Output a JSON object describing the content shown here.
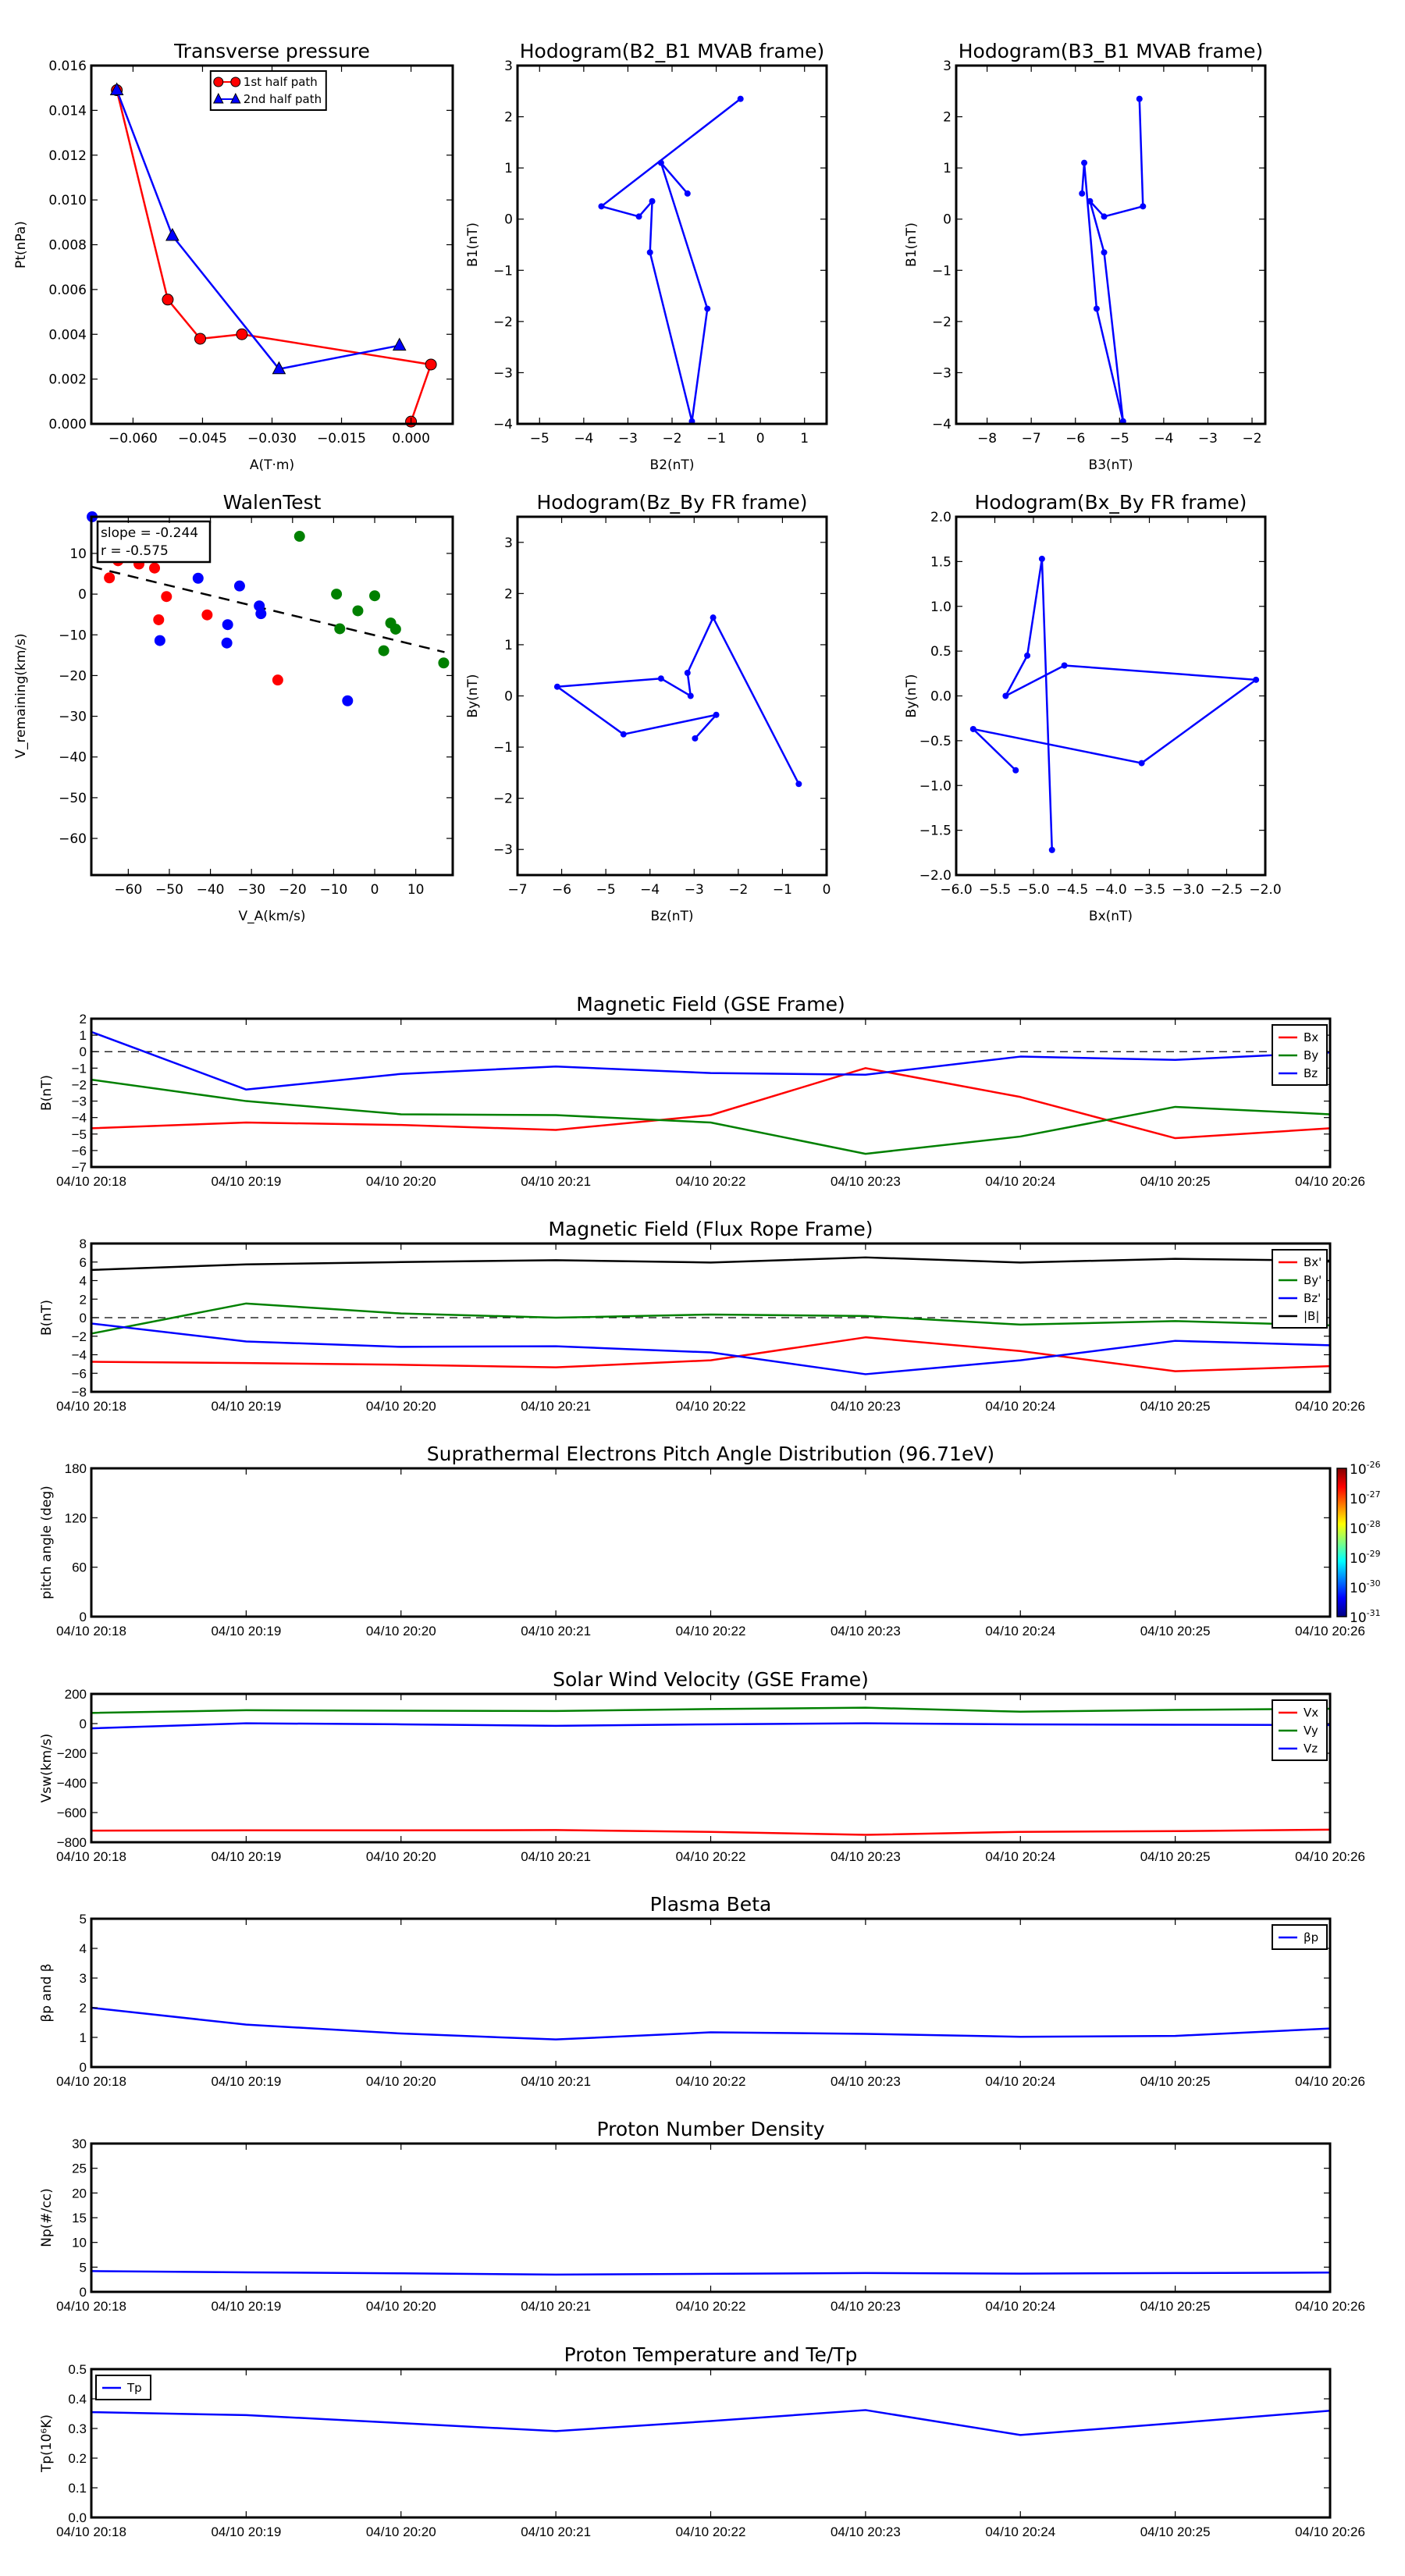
{
  "chart_data": [
    {
      "id": "transverse-pressure",
      "type": "line",
      "title": "Transverse pressure",
      "xlabel": "A(T·m)",
      "ylabel": "Pt(nPa)",
      "xlim": [
        -0.069,
        0.009
      ],
      "ylim": [
        0.0,
        0.016
      ],
      "xticks": [
        -0.06,
        -0.045,
        -0.03,
        -0.015,
        0.0
      ],
      "xtick_labels": [
        "−0.060",
        "−0.045",
        "−0.030",
        "−0.015",
        "0.000"
      ],
      "yticks": [
        0.0,
        0.002,
        0.004,
        0.006,
        0.008,
        0.01,
        0.012,
        0.014,
        0.016
      ],
      "ytick_labels": [
        "0.000",
        "0.002",
        "0.004",
        "0.006",
        "0.008",
        "0.010",
        "0.012",
        "0.014",
        "0.016"
      ],
      "legend_position": "top-center",
      "series": [
        {
          "name": "1st half path",
          "color": "#ff0000",
          "marker": "circle",
          "x": [
            0.0,
            0.0043,
            -0.0365,
            -0.0455,
            -0.0525,
            -0.0635
          ],
          "y": [
            0.0001,
            0.00265,
            0.004,
            0.0038,
            0.00555,
            0.0149
          ]
        },
        {
          "name": "2nd half path",
          "color": "#0000ff",
          "marker": "triangle",
          "x": [
            -0.0635,
            -0.0515,
            -0.0285,
            -0.0025
          ],
          "y": [
            0.0149,
            0.0084,
            0.00245,
            0.0035
          ]
        }
      ]
    },
    {
      "id": "hodogram-b2-b1",
      "type": "line",
      "title": "Hodogram(B2_B1 MVAB frame)",
      "xlabel": "B2(nT)",
      "ylabel": "B1(nT)",
      "xlim": [
        -5.5,
        1.5
      ],
      "ylim": [
        -4,
        3
      ],
      "xticks": [
        -5,
        -4,
        -3,
        -2,
        -1,
        0,
        1
      ],
      "xtick_labels": [
        "−5",
        "−4",
        "−3",
        "−2",
        "−1",
        "0",
        "1"
      ],
      "yticks": [
        -4,
        -3,
        -2,
        -1,
        0,
        1,
        2,
        3
      ],
      "ytick_labels": [
        "−4",
        "−3",
        "−2",
        "−1",
        "0",
        "1",
        "2",
        "3"
      ],
      "series": [
        {
          "name": "B2_B1",
          "color": "#0000ff",
          "marker": "dot",
          "x": [
            -0.45,
            -3.6,
            -2.75,
            -2.45,
            -2.5,
            -1.55,
            -1.2,
            -2.25,
            -1.65
          ],
          "y": [
            2.35,
            0.25,
            0.05,
            0.35,
            -0.65,
            -3.95,
            -1.75,
            1.1,
            0.5
          ]
        }
      ]
    },
    {
      "id": "hodogram-b3-b1",
      "type": "line",
      "title": "Hodogram(B3_B1 MVAB frame)",
      "xlabel": "B3(nT)",
      "ylabel": "B1(nT)",
      "xlim": [
        -8.7,
        -1.7
      ],
      "ylim": [
        -4,
        3
      ],
      "xticks": [
        -8,
        -7,
        -6,
        -5,
        -4,
        -3,
        -2
      ],
      "xtick_labels": [
        "−8",
        "−7",
        "−6",
        "−5",
        "−4",
        "−3",
        "−2"
      ],
      "yticks": [
        -4,
        -3,
        -2,
        -1,
        0,
        1,
        2,
        3
      ],
      "ytick_labels": [
        "−4",
        "−3",
        "−2",
        "−1",
        "0",
        "1",
        "2",
        "3"
      ],
      "series": [
        {
          "name": "B3_B1",
          "color": "#0000ff",
          "marker": "dot",
          "x": [
            -4.55,
            -4.47,
            -5.35,
            -5.67,
            -5.35,
            -4.92,
            -5.52,
            -5.8,
            -5.85
          ],
          "y": [
            2.35,
            0.25,
            0.05,
            0.35,
            -0.65,
            -3.95,
            -1.75,
            1.1,
            0.5
          ]
        }
      ]
    },
    {
      "id": "walen-test",
      "type": "scatter",
      "title": "WalenTest",
      "xlabel": "V_A(km/s)",
      "ylabel": "V_remaining(km/s)",
      "xlim": [
        -69,
        19
      ],
      "ylim": [
        -69,
        19
      ],
      "xticks": [
        -60,
        -50,
        -40,
        -30,
        -20,
        -10,
        0,
        10
      ],
      "xtick_labels": [
        "−60",
        "−50",
        "−40",
        "−30",
        "−20",
        "−10",
        "0",
        "10"
      ],
      "yticks": [
        -60,
        -50,
        -40,
        -30,
        -20,
        -10,
        0,
        10
      ],
      "ytick_labels": [
        "−60",
        "−50",
        "−40",
        "−30",
        "−20",
        "−10",
        "0",
        "10"
      ],
      "annotation": {
        "slope_text": "slope = -0.244",
        "r_text": "r = -0.575"
      },
      "fit_line": {
        "slope": -0.244,
        "intercept": -10.1,
        "color": "#000000",
        "style": "dashed"
      },
      "series": [
        {
          "name": "Vx",
          "color": "#ff0000",
          "x": [
            -64.6,
            -62.5,
            -57.4,
            -53.6,
            -50.7,
            -52.6,
            -40.8,
            -23.6
          ],
          "y": [
            4.0,
            8.2,
            7.4,
            6.4,
            -0.6,
            -6.3,
            -5.1,
            -21.1
          ]
        },
        {
          "name": "Vy",
          "color": "#0000ff",
          "x": [
            -68.8,
            -43.0,
            -32.9,
            -28.1,
            -27.7,
            -35.8,
            -52.3,
            -36.0,
            -6.6
          ],
          "y": [
            19.0,
            3.9,
            2.0,
            -2.9,
            -4.8,
            -7.5,
            -11.4,
            -12.0,
            -26.2
          ]
        },
        {
          "name": "Vz",
          "color": "#008000",
          "x": [
            -18.3,
            -9.3,
            0.0,
            -8.5,
            -4.1,
            3.9,
            5.1,
            2.2,
            16.8
          ],
          "y": [
            14.2,
            0.0,
            -0.4,
            -8.5,
            -4.1,
            -7.1,
            -8.6,
            -13.9,
            -16.9
          ]
        }
      ]
    },
    {
      "id": "hodogram-bz-by",
      "type": "line",
      "title": "Hodogram(Bz_By FR frame)",
      "xlabel": "Bz(nT)",
      "ylabel": "By(nT)",
      "xlim": [
        -7,
        0
      ],
      "ylim": [
        -3.5,
        3.5
      ],
      "xticks": [
        -7,
        -6,
        -5,
        -4,
        -3,
        -2,
        -1,
        0
      ],
      "xtick_labels": [
        "−7",
        "−6",
        "−5",
        "−4",
        "−3",
        "−2",
        "−1",
        "0"
      ],
      "yticks": [
        -3,
        -2,
        -1,
        0,
        1,
        2,
        3
      ],
      "ytick_labels": [
        "−3",
        "−2",
        "−1",
        "0",
        "1",
        "2",
        "3"
      ],
      "series": [
        {
          "name": "Bz_By",
          "color": "#0000ff",
          "marker": "dot",
          "x": [
            -0.63,
            -2.57,
            -3.15,
            -3.08,
            -3.75,
            -6.1,
            -4.6,
            -2.5,
            -2.98
          ],
          "y": [
            -1.72,
            1.53,
            0.45,
            0.0,
            0.34,
            0.18,
            -0.75,
            -0.37,
            -0.83
          ]
        }
      ]
    },
    {
      "id": "hodogram-bx-by",
      "type": "line",
      "title": "Hodogram(Bx_By FR frame)",
      "xlabel": "Bx(nT)",
      "ylabel": "By(nT)",
      "xlim": [
        -6.0,
        -2.0
      ],
      "ylim": [
        -2.0,
        2.0
      ],
      "xticks": [
        -6.0,
        -5.5,
        -5.0,
        -4.5,
        -4.0,
        -3.5,
        -3.0,
        -2.5,
        -2.0
      ],
      "xtick_labels": [
        "−6.0",
        "−5.5",
        "−5.0",
        "−4.5",
        "−4.0",
        "−3.5",
        "−3.0",
        "−2.5",
        "−2.0"
      ],
      "yticks": [
        -2.0,
        -1.5,
        -1.0,
        -0.5,
        0.0,
        0.5,
        1.0,
        1.5,
        2.0
      ],
      "ytick_labels": [
        "−2.0",
        "−1.5",
        "−1.0",
        "−0.5",
        "0.0",
        "0.5",
        "1.0",
        "1.5",
        "2.0"
      ],
      "series": [
        {
          "name": "Bx_By",
          "color": "#0000ff",
          "marker": "dot",
          "x": [
            -4.76,
            -4.89,
            -5.08,
            -5.36,
            -4.6,
            -2.12,
            -3.6,
            -5.78,
            -5.23
          ],
          "y": [
            -1.72,
            1.53,
            0.45,
            0.0,
            0.34,
            0.18,
            -0.75,
            -0.37,
            -0.83
          ]
        }
      ]
    },
    {
      "id": "mag-gse",
      "type": "line",
      "title": "Magnetic Field (GSE Frame)",
      "ylabel": "B(nT)",
      "ylim": [
        -7,
        2
      ],
      "yticks": [
        -7,
        -6,
        -5,
        -4,
        -3,
        -2,
        -1,
        0,
        1,
        2
      ],
      "ytick_labels": [
        "−7",
        "−6",
        "−5",
        "−4",
        "−3",
        "−2",
        "−1",
        "0",
        "1",
        "2"
      ],
      "zero_line": true,
      "legend_position": "top-right",
      "series": [
        {
          "name": "Bx",
          "color": "#ff0000",
          "values": [
            -4.65,
            -4.3,
            -4.45,
            -4.75,
            -3.85,
            -1.0,
            -2.75,
            -5.25,
            -4.65
          ]
        },
        {
          "name": "By",
          "color": "#008000",
          "values": [
            -1.7,
            -3.0,
            -3.8,
            -3.85,
            -4.3,
            -6.2,
            -5.15,
            -3.35,
            -3.8
          ]
        },
        {
          "name": "Bz",
          "color": "#0000ff",
          "values": [
            1.2,
            -2.3,
            -1.35,
            -0.9,
            -1.3,
            -1.4,
            -0.3,
            -0.5,
            -0.05
          ]
        }
      ]
    },
    {
      "id": "mag-fr",
      "type": "line",
      "title": "Magnetic Field (Flux Rope Frame)",
      "ylabel": "B(nT)",
      "ylim": [
        -8,
        8
      ],
      "yticks": [
        -8,
        -6,
        -4,
        -2,
        0,
        2,
        4,
        6,
        8
      ],
      "ytick_labels": [
        "−8",
        "−6",
        "−4",
        "−2",
        "0",
        "2",
        "4",
        "6",
        "8"
      ],
      "zero_line": true,
      "legend_position": "top-right",
      "series": [
        {
          "name": "Bx'",
          "color": "#ff0000",
          "values": [
            -4.76,
            -4.89,
            -5.08,
            -5.36,
            -4.6,
            -2.12,
            -3.6,
            -5.78,
            -5.23
          ]
        },
        {
          "name": "By'",
          "color": "#008000",
          "values": [
            -1.72,
            1.53,
            0.45,
            0.0,
            0.34,
            0.18,
            -0.75,
            -0.37,
            -0.83
          ]
        },
        {
          "name": "Bz'",
          "color": "#0000ff",
          "values": [
            -0.63,
            -2.57,
            -3.15,
            -3.08,
            -3.75,
            -6.1,
            -4.6,
            -2.5,
            -2.98
          ]
        },
        {
          "name": "|B|",
          "color": "#000000",
          "values": [
            5.15,
            5.75,
            6.0,
            6.2,
            5.95,
            6.5,
            5.95,
            6.35,
            6.15
          ]
        }
      ]
    },
    {
      "id": "pitch-angle",
      "type": "heatmap",
      "title": "Suprathermal Electrons Pitch Angle Distribution (96.71eV)",
      "ylabel": "pitch angle (deg)",
      "ylim": [
        0,
        180
      ],
      "yticks": [
        0,
        60,
        120,
        180
      ],
      "ytick_labels": [
        "0",
        "60",
        "120",
        "180"
      ],
      "values": [],
      "colorbar": {
        "scale": "log",
        "range": [
          1e-31,
          1e-26
        ],
        "tick_bases": [
          "10",
          "10",
          "10",
          "10",
          "10",
          "10"
        ],
        "tick_exponents": [
          "-26",
          "-27",
          "-28",
          "-29",
          "-30",
          "-31"
        ],
        "colormap": [
          "#800000",
          "#ff0000",
          "#ff8000",
          "#ffff00",
          "#80ff80",
          "#00ffff",
          "#0080ff",
          "#0000ff",
          "#000080"
        ]
      }
    },
    {
      "id": "solar-wind",
      "type": "line",
      "title": "Solar Wind Velocity (GSE Frame)",
      "ylabel": "Vsw(km/s)",
      "ylim": [
        -800,
        200
      ],
      "yticks": [
        -800,
        -600,
        -400,
        -200,
        0,
        200
      ],
      "ytick_labels": [
        "−800",
        "−600",
        "−400",
        "−200",
        "0",
        "200"
      ],
      "legend_position": "top-right",
      "series": [
        {
          "name": "Vx",
          "color": "#ff0000",
          "values": [
            -722,
            -720,
            -720,
            -718,
            -730,
            -750,
            -730,
            -725,
            -715
          ]
        },
        {
          "name": "Vy",
          "color": "#008000",
          "values": [
            72,
            90,
            87,
            85,
            98,
            107,
            80,
            92,
            100
          ]
        },
        {
          "name": "Vz",
          "color": "#0000ff",
          "values": [
            -32,
            2,
            -5,
            -15,
            -5,
            2,
            -5,
            -8,
            -10
          ]
        }
      ]
    },
    {
      "id": "plasma-beta",
      "type": "line",
      "title": "Plasma Beta",
      "ylabel": "βp and β",
      "ylim": [
        0,
        5
      ],
      "yticks": [
        0,
        1,
        2,
        3,
        4,
        5
      ],
      "ytick_labels": [
        "0",
        "1",
        "2",
        "3",
        "4",
        "5"
      ],
      "legend_position": "top-right",
      "series": [
        {
          "name": "βp",
          "color": "#0000ff",
          "values": [
            2.0,
            1.43,
            1.13,
            0.93,
            1.17,
            1.12,
            1.02,
            1.05,
            1.3
          ]
        }
      ]
    },
    {
      "id": "proton-density",
      "type": "line",
      "title": "Proton Number Density",
      "ylabel": "Np(#/cc)",
      "ylim": [
        0,
        30
      ],
      "yticks": [
        0,
        5,
        10,
        15,
        20,
        25,
        30
      ],
      "ytick_labels": [
        "0",
        "5",
        "10",
        "15",
        "20",
        "25",
        "30"
      ],
      "series": [
        {
          "name": "Np",
          "color": "#0000ff",
          "values": [
            4.2,
            3.95,
            3.75,
            3.5,
            3.65,
            3.8,
            3.7,
            3.8,
            3.9
          ]
        }
      ]
    },
    {
      "id": "proton-temp",
      "type": "line",
      "title": "Proton Temperature and Te/Tp",
      "ylabel": "Tp(10⁶K)",
      "ylim": [
        0,
        0.5
      ],
      "yticks": [
        0.0,
        0.1,
        0.2,
        0.3,
        0.4,
        0.5
      ],
      "ytick_labels": [
        "0.0",
        "0.1",
        "0.2",
        "0.3",
        "0.4",
        "0.5"
      ],
      "legend_position": "top-left",
      "series": [
        {
          "name": "Tp",
          "color": "#0000ff",
          "values": [
            0.355,
            0.345,
            0.318,
            0.291,
            0.325,
            0.362,
            0.278,
            0.318,
            0.36
          ]
        }
      ]
    }
  ],
  "time_axis": {
    "labels": [
      "04/10 20:18",
      "04/10 20:19",
      "04/10 20:20",
      "04/10 20:21",
      "04/10 20:22",
      "04/10 20:23",
      "04/10 20:24",
      "04/10 20:25",
      "04/10 20:26"
    ]
  }
}
